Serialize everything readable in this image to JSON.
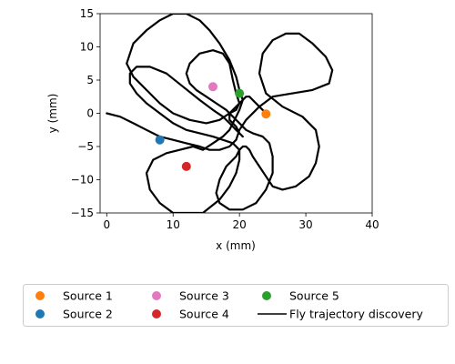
{
  "chart_data": {
    "type": "scatter",
    "title": "",
    "xlabel": "x (mm)",
    "ylabel": "y (mm)",
    "xlim": [
      -1,
      40
    ],
    "ylim": [
      -15,
      15
    ],
    "xticks": [
      0,
      10,
      20,
      30,
      40
    ],
    "yticks": [
      -15,
      -10,
      -5,
      0,
      5,
      10,
      15
    ],
    "grid": false,
    "legend_placement": "below-plot",
    "sources": [
      {
        "name": "Source 1",
        "x": 24.0,
        "y": -0.1,
        "color": "#ff7f0e"
      },
      {
        "name": "Source 2",
        "x": 8.0,
        "y": -4.0,
        "color": "#1f77b4"
      },
      {
        "name": "Source 3",
        "x": 16.0,
        "y": 4.0,
        "color": "#e377c2"
      },
      {
        "name": "Source 4",
        "x": 12.0,
        "y": -8.0,
        "color": "#d62728"
      },
      {
        "name": "Source 5",
        "x": 20.0,
        "y": 3.0,
        "color": "#2ca02c"
      }
    ],
    "trajectory": {
      "name": "Fly trajectory discovery",
      "color": "#000000",
      "x": [
        0.0,
        2.0,
        4.0,
        6.0,
        8.0,
        10.0,
        12.0,
        14.0,
        15.5,
        17.0,
        18.5,
        19.5,
        20.0,
        21.0,
        23.0,
        25.0,
        28.0,
        31.0,
        33.5,
        34.0,
        33.0,
        31.0,
        29.0,
        27.0,
        25.0,
        23.5,
        23.0,
        24.0,
        26.5,
        29.5,
        31.5,
        32.0,
        31.5,
        30.5,
        28.5,
        26.5,
        25.0,
        24.0,
        23.0,
        22.0,
        21.5,
        21.0,
        20.5,
        20.0,
        19.5,
        18.0,
        17.0,
        16.5,
        17.0,
        18.5,
        20.5,
        22.5,
        24.0,
        25.0,
        25.0,
        24.5,
        23.5,
        22.0,
        21.0,
        20.0,
        19.0,
        18.0,
        16.5,
        15.0,
        13.5,
        12.5,
        12.0,
        12.5,
        14.0,
        16.0,
        17.5,
        18.5,
        19.0,
        19.5,
        20.0,
        19.5,
        18.5,
        17.0,
        15.0,
        12.5,
        10.0,
        8.0,
        6.0,
        4.0,
        3.0,
        4.0,
        6.0,
        8.0,
        10.0,
        12.0,
        14.0,
        15.5,
        17.0,
        18.5,
        19.5,
        20.0,
        20.5,
        20.0,
        19.5,
        19.0,
        18.5,
        17.5,
        16.0,
        14.5,
        13.0,
        11.0,
        9.0,
        7.0,
        6.0,
        6.5,
        8.0,
        10.0,
        12.0,
        14.5,
        17.0,
        18.5,
        19.5,
        20.0,
        20.0,
        19.0,
        17.5,
        16.0,
        14.0,
        12.0,
        10.0,
        8.0,
        6.0,
        4.5,
        3.5,
        3.5,
        4.5,
        6.5,
        9.0,
        11.5,
        14.0,
        16.0,
        17.5,
        18.0,
        18.5,
        19.0,
        19.5,
        20.0,
        20.5,
        20.0,
        19.5,
        18.5,
        18.5,
        19.0,
        19.5,
        20.0,
        20.5,
        21.0,
        21.5,
        22.0,
        23.0,
        24.0
      ],
      "y": [
        0.0,
        -0.5,
        -1.5,
        -2.5,
        -3.5,
        -4.0,
        -4.5,
        -5.0,
        -5.5,
        -5.5,
        -5.0,
        -4.0,
        -2.5,
        -1.0,
        1.0,
        2.5,
        3.0,
        3.5,
        4.5,
        6.5,
        8.5,
        10.5,
        12.0,
        12.0,
        11.0,
        9.0,
        6.0,
        3.0,
        1.0,
        -0.5,
        -2.5,
        -5.0,
        -7.5,
        -9.5,
        -11.0,
        -11.5,
        -11.0,
        -9.5,
        -8.0,
        -6.5,
        -5.5,
        -5.0,
        -5.0,
        -5.5,
        -6.5,
        -8.0,
        -10.0,
        -12.0,
        -13.5,
        -14.5,
        -14.5,
        -13.5,
        -11.5,
        -9.0,
        -6.5,
        -4.5,
        -3.5,
        -3.0,
        -2.5,
        -1.5,
        -0.5,
        0.5,
        1.5,
        2.5,
        3.5,
        4.5,
        6.0,
        7.5,
        9.0,
        9.5,
        9.0,
        7.5,
        5.0,
        3.0,
        1.5,
        0.5,
        0.0,
        -1.0,
        -1.5,
        -1.0,
        0.0,
        1.5,
        3.5,
        5.5,
        7.5,
        10.5,
        12.5,
        14.0,
        15.0,
        15.0,
        14.0,
        12.5,
        10.5,
        8.0,
        5.5,
        3.5,
        2.0,
        0.5,
        -0.5,
        -1.5,
        -2.5,
        -3.5,
        -4.5,
        -5.5,
        -5.0,
        -5.5,
        -6.0,
        -7.0,
        -9.0,
        -11.5,
        -13.5,
        -15.0,
        -15.0,
        -15.0,
        -13.0,
        -11.0,
        -9.0,
        -7.0,
        -5.5,
        -4.5,
        -4.0,
        -3.5,
        -3.0,
        -2.5,
        -1.5,
        0.0,
        1.5,
        3.0,
        4.5,
        6.0,
        7.0,
        7.0,
        6.0,
        4.0,
        2.0,
        0.5,
        -0.5,
        -1.0,
        -1.5,
        -2.0,
        -2.5,
        -3.0,
        -3.5,
        -3.0,
        -2.0,
        -1.0,
        0.0,
        0.5,
        1.0,
        1.5,
        2.0,
        2.5,
        2.5,
        2.0,
        1.0,
        0.0
      ]
    },
    "legend": {
      "columns": 3,
      "entries": [
        {
          "label": "Source 1",
          "marker": "dot",
          "color": "#ff7f0e"
        },
        {
          "label": "Source 2",
          "marker": "dot",
          "color": "#1f77b4"
        },
        {
          "label": "Source 3",
          "marker": "dot",
          "color": "#e377c2"
        },
        {
          "label": "Source 4",
          "marker": "dot",
          "color": "#d62728"
        },
        {
          "label": "Source 5",
          "marker": "dot",
          "color": "#2ca02c"
        },
        {
          "label": "Fly trajectory discovery",
          "marker": "line",
          "color": "#000000"
        }
      ]
    }
  }
}
